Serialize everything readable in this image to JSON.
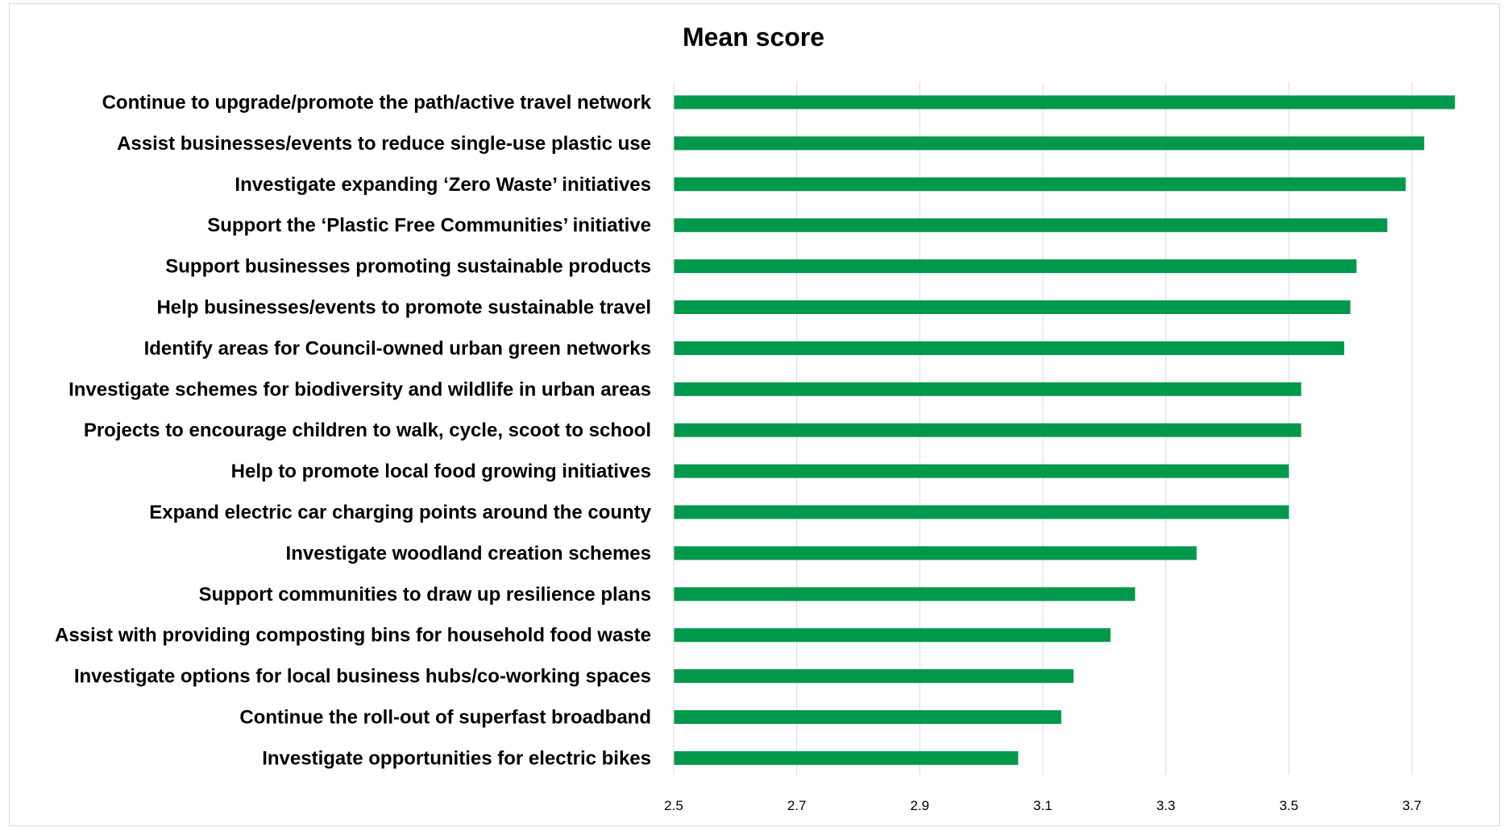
{
  "chart_data": {
    "type": "bar",
    "orientation": "horizontal",
    "title": "Mean score",
    "xlabel": "",
    "ylabel": "",
    "xlim": [
      2.5,
      3.8
    ],
    "x_ticks": [
      "2.5",
      "2.7",
      "2.9",
      "3.1",
      "3.3",
      "3.5",
      "3.7"
    ],
    "grid": true,
    "bar_color": "#00994c",
    "categories": [
      "Continue to upgrade/promote the path/active travel network",
      "Assist businesses/events to reduce single-use plastic use",
      "Investigate expanding ‘Zero Waste’ initiatives",
      "Support the ‘Plastic Free Communities’ initiative",
      "Support businesses promoting sustainable products",
      "Help businesses/events to promote sustainable travel",
      "Identify areas for Council-owned urban green networks",
      "Investigate schemes for biodiversity and wildlife in urban areas",
      "Projects to encourage children to walk, cycle, scoot to school",
      "Help to promote local food growing initiatives",
      "Expand electric car charging points around the county",
      "Investigate woodland creation schemes",
      "Support communities to draw up resilience plans",
      "Assist with providing composting bins for household food waste",
      "Investigate options for local business hubs/co-working spaces",
      "Continue the roll-out of superfast broadband",
      "Investigate opportunities for electric bikes"
    ],
    "values": [
      3.77,
      3.72,
      3.69,
      3.66,
      3.61,
      3.6,
      3.59,
      3.52,
      3.52,
      3.5,
      3.5,
      3.35,
      3.25,
      3.21,
      3.15,
      3.13,
      3.06
    ]
  }
}
